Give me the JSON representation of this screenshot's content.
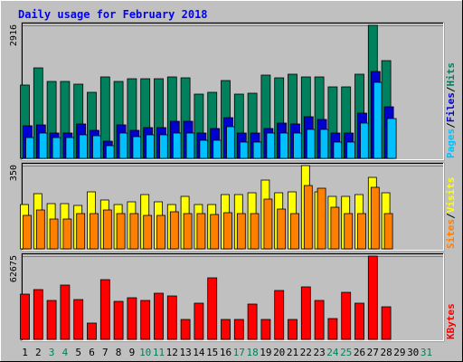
{
  "title": "Daily usage for February 2018",
  "colors": {
    "hits": "#00805c",
    "files": "#0000d0",
    "pages": "#00c0ff",
    "visits": "#ffff00",
    "sites": "#ff8000",
    "kbytes": "#ff0000",
    "weekday": "#000000",
    "weekend": "#00805c"
  },
  "chart_data": [
    {
      "type": "bar",
      "name": "hits-files-pages",
      "scale_label": "2916",
      "ylim": [
        0,
        2916
      ],
      "legend": [
        "Hits",
        "/",
        "Files",
        "/",
        "Pages"
      ],
      "categories": [
        "1",
        "2",
        "3",
        "4",
        "5",
        "6",
        "7",
        "8",
        "9",
        "10",
        "11",
        "12",
        "13",
        "14",
        "15",
        "16",
        "17",
        "18",
        "19",
        "20",
        "21",
        "22",
        "23",
        "24",
        "25",
        "26",
        "27",
        "28"
      ],
      "series": [
        {
          "name": "Hits",
          "values": [
            1610,
            1990,
            1690,
            1690,
            1630,
            1440,
            1780,
            1680,
            1740,
            1740,
            1740,
            1780,
            1760,
            1400,
            1450,
            1700,
            1410,
            1420,
            1820,
            1760,
            1840,
            1780,
            1780,
            1570,
            1570,
            1840,
            2916,
            2150
          ]
        },
        {
          "name": "Files",
          "values": [
            720,
            730,
            560,
            560,
            750,
            620,
            370,
            740,
            610,
            680,
            680,
            820,
            820,
            550,
            650,
            890,
            560,
            560,
            660,
            770,
            760,
            910,
            850,
            560,
            560,
            1000,
            1910,
            1140
          ]
        },
        {
          "name": "Pages",
          "values": [
            450,
            560,
            460,
            460,
            520,
            500,
            280,
            560,
            470,
            510,
            510,
            560,
            560,
            400,
            400,
            700,
            350,
            350,
            560,
            560,
            560,
            640,
            640,
            360,
            360,
            780,
            1660,
            870
          ]
        }
      ]
    },
    {
      "type": "bar",
      "name": "visits-sites",
      "scale_label": "350",
      "ylim": [
        0,
        350
      ],
      "legend": [
        "Visits",
        "/",
        "Sites"
      ],
      "categories": [
        "1",
        "2",
        "3",
        "4",
        "5",
        "6",
        "7",
        "8",
        "9",
        "10",
        "11",
        "12",
        "13",
        "14",
        "15",
        "16",
        "17",
        "18",
        "19",
        "20",
        "21",
        "22",
        "23",
        "24",
        "25",
        "26",
        "27",
        "28"
      ],
      "series": [
        {
          "name": "Visits",
          "values": [
            188,
            232,
            190,
            190,
            184,
            240,
            206,
            188,
            196,
            230,
            196,
            188,
            220,
            186,
            186,
            230,
            230,
            234,
            290,
            236,
            238,
            350,
            240,
            220,
            220,
            228,
            300,
            236
          ]
        },
        {
          "name": "Sites",
          "values": [
            140,
            165,
            126,
            126,
            150,
            150,
            162,
            150,
            150,
            140,
            140,
            156,
            150,
            150,
            144,
            154,
            150,
            150,
            210,
            166,
            150,
            266,
            256,
            174,
            150,
            150,
            260,
            150
          ]
        }
      ]
    },
    {
      "type": "bar",
      "name": "kbytes",
      "scale_label": "62675",
      "ylim": [
        0,
        62675
      ],
      "legend": [
        "KBytes"
      ],
      "categories": [
        "1",
        "2",
        "3",
        "4",
        "5",
        "6",
        "7",
        "8",
        "9",
        "10",
        "11",
        "12",
        "13",
        "14",
        "15",
        "16",
        "17",
        "18",
        "19",
        "20",
        "21",
        "22",
        "23",
        "24",
        "25",
        "26",
        "27",
        "28"
      ],
      "series": [
        {
          "name": "KBytes",
          "values": [
            34000,
            37500,
            29600,
            41200,
            29800,
            12100,
            45000,
            28500,
            31400,
            29600,
            34500,
            33000,
            14800,
            27100,
            46000,
            14800,
            14800,
            26700,
            14800,
            37000,
            14800,
            39600,
            29400,
            15800,
            35600,
            27100,
            62675,
            24600
          ]
        }
      ]
    }
  ],
  "day_axis": {
    "labels": [
      "1",
      "2",
      "3",
      "4",
      "5",
      "6",
      "7",
      "8",
      "9",
      "10",
      "11",
      "12",
      "13",
      "14",
      "15",
      "16",
      "17",
      "18",
      "19",
      "20",
      "21",
      "22",
      "23",
      "24",
      "25",
      "26",
      "27",
      "28",
      "29",
      "30",
      "31"
    ],
    "weekend": [
      false,
      false,
      true,
      true,
      false,
      false,
      false,
      false,
      false,
      true,
      true,
      false,
      false,
      false,
      false,
      false,
      true,
      true,
      false,
      false,
      false,
      false,
      false,
      true,
      true,
      false,
      false,
      false,
      false,
      false,
      true
    ]
  }
}
